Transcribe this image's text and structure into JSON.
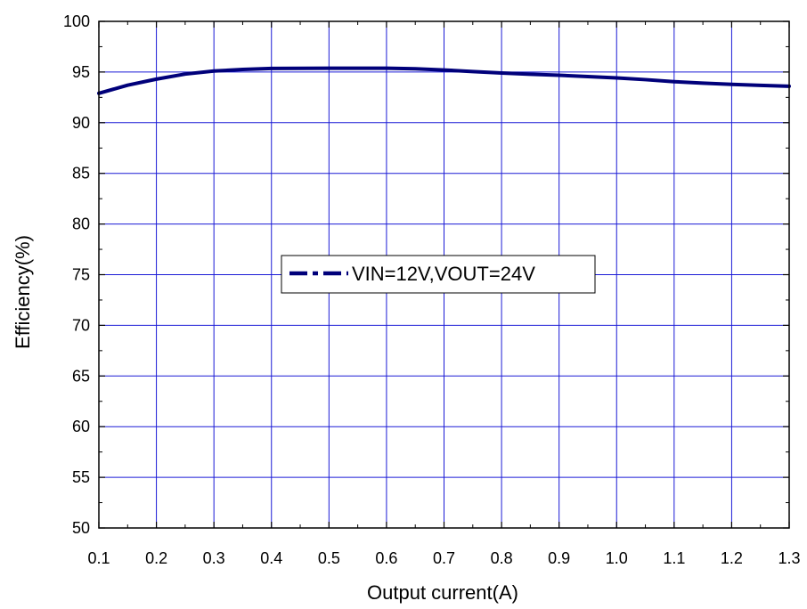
{
  "chart_data": {
    "type": "line",
    "title": "",
    "xlabel": "Output current(A)",
    "ylabel": "Efficiency(%)",
    "xlim": [
      0.1,
      1.3
    ],
    "ylim": [
      50,
      100
    ],
    "x_ticks": [
      0.1,
      0.2,
      0.3,
      0.4,
      0.5,
      0.6,
      0.7,
      0.8,
      0.9,
      1.0,
      1.1,
      1.2,
      1.3
    ],
    "x_tick_labels": [
      "0.1",
      "0.2",
      "0.3",
      "0.4",
      "0.5",
      "0.6",
      "0.7",
      "0.8",
      "0.9",
      "1.0",
      "1.1",
      "1.2",
      "1.3"
    ],
    "y_ticks": [
      50,
      55,
      60,
      65,
      70,
      75,
      80,
      85,
      90,
      95,
      100
    ],
    "y_tick_labels": [
      "50",
      "55",
      "60",
      "65",
      "70",
      "75",
      "80",
      "85",
      "90",
      "95",
      "100"
    ],
    "grid": true,
    "grid_color": "#1a1ad6",
    "legend_placement": "center",
    "series": [
      {
        "name": "VIN=12V,VOUT=24V",
        "color": "#00007a",
        "line_style": "dash-dot",
        "x": [
          0.1,
          0.15,
          0.2,
          0.25,
          0.3,
          0.35,
          0.4,
          0.45,
          0.5,
          0.55,
          0.6,
          0.65,
          0.7,
          0.75,
          0.8,
          0.85,
          0.9,
          0.95,
          1.0,
          1.05,
          1.1,
          1.15,
          1.2,
          1.25,
          1.3
        ],
        "y": [
          92.9,
          93.7,
          94.3,
          94.8,
          95.1,
          95.25,
          95.35,
          95.37,
          95.38,
          95.38,
          95.38,
          95.32,
          95.2,
          95.05,
          94.9,
          94.78,
          94.68,
          94.55,
          94.42,
          94.25,
          94.05,
          93.9,
          93.78,
          93.68,
          93.6
        ]
      }
    ]
  }
}
